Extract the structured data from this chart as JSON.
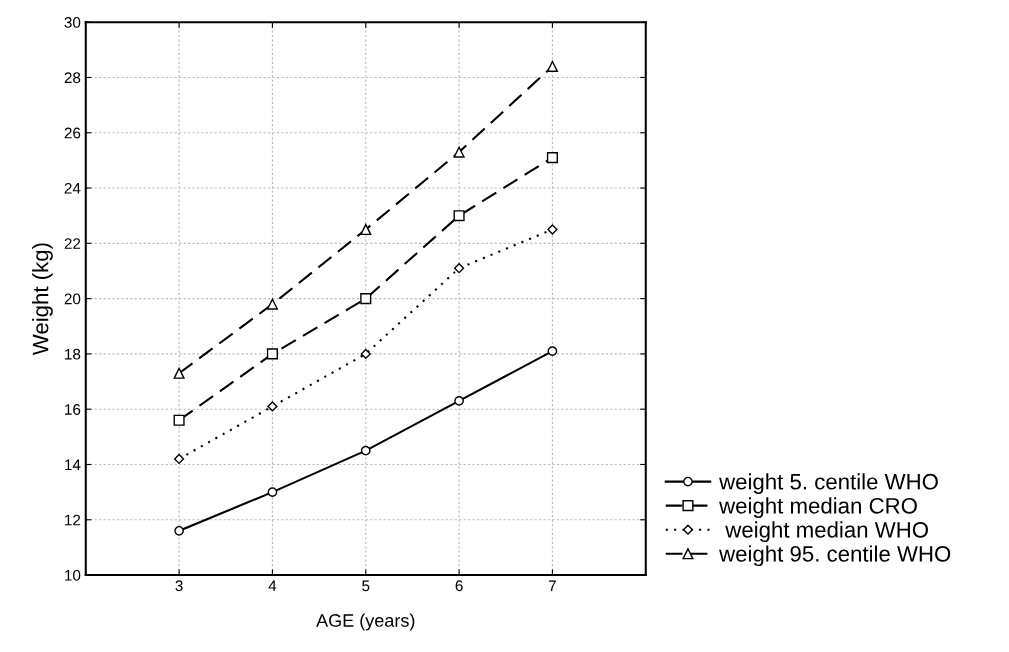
{
  "chart_data": {
    "type": "line",
    "xlabel": "AGE (years)",
    "ylabel": "Weight (kg)",
    "x": [
      3,
      4,
      5,
      6,
      7
    ],
    "xlim": [
      2,
      8
    ],
    "xticks": [
      3,
      4,
      5,
      6,
      7
    ],
    "ylim": [
      10,
      30
    ],
    "yticks": [
      10,
      12,
      14,
      16,
      18,
      20,
      22,
      24,
      26,
      28,
      30
    ],
    "grid": true,
    "legend": "bottom right",
    "series": [
      {
        "name": "weight 5. centile WHO",
        "color": "#000000",
        "marker": "circle",
        "line_style": "solid",
        "values": [
          11.6,
          13.0,
          14.5,
          16.3,
          18.1
        ]
      },
      {
        "name": "weight median CRO",
        "color": "#000000",
        "marker": "square",
        "line_style": "dashed",
        "values": [
          15.6,
          18.0,
          20.0,
          23.0,
          25.1
        ]
      },
      {
        "name": " weight median WHO",
        "color": "#000000",
        "marker": "diamond",
        "line_style": "dotted",
        "values": [
          14.2,
          16.1,
          18.0,
          21.1,
          22.5
        ]
      },
      {
        "name": "weight 95. centile WHO",
        "color": "#000000",
        "marker": "triangle",
        "line_style": "dashed",
        "values": [
          17.3,
          19.8,
          22.5,
          25.3,
          28.4
        ]
      }
    ]
  }
}
